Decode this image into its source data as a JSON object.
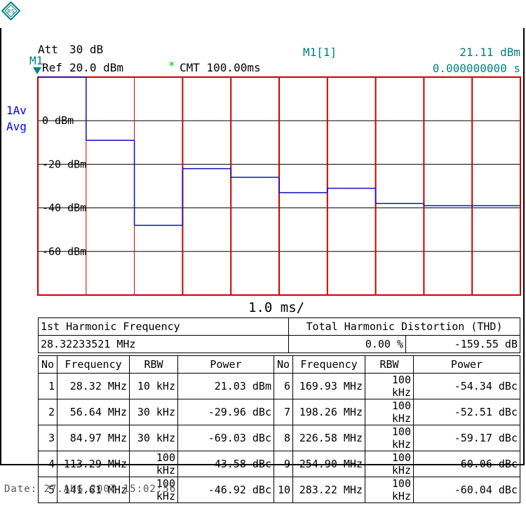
{
  "header": {
    "att_label": "Att",
    "att_value": "30 dB",
    "ref_label": "Ref",
    "ref_value": "20.0 dBm",
    "marker_label": "M1",
    "cmt_star": "*",
    "cmt_text": "CMT 100.00ms",
    "marker_readout_label": "M1[1]",
    "marker_level": "21.11 dBm",
    "marker_time": "0.000000000 s",
    "trace_mode_1": "1Av",
    "trace_mode_2": "Avg",
    "x_scale": "1.0 ms/"
  },
  "colors": {
    "teal": "#008080",
    "trace": "#1010c0",
    "divider_red": "#cc0000",
    "grid": "#000000"
  },
  "chart_data": {
    "type": "line",
    "ylabel_ticks": [
      "0 dBm",
      "-20 dBm",
      "-40 dBm",
      "-60 dBm"
    ],
    "ylim": [
      -80,
      20
    ],
    "xlim": [
      0,
      10
    ],
    "x_unit_label": "1.0 ms/",
    "series": [
      {
        "segments": [
          {
            "x": [
              0,
              1
            ],
            "y": 20
          },
          {
            "x": [
              1,
              2
            ],
            "y": -9
          },
          {
            "x": [
              2,
              3
            ],
            "y": -48
          },
          {
            "x": [
              3,
              4
            ],
            "y": -22
          },
          {
            "x": [
              4,
              5
            ],
            "y": -26
          },
          {
            "x": [
              5,
              6
            ],
            "y": -33
          },
          {
            "x": [
              6,
              7
            ],
            "y": -31
          },
          {
            "x": [
              7,
              8
            ],
            "y": -38
          },
          {
            "x": [
              8,
              10
            ],
            "y": -39
          }
        ]
      }
    ]
  },
  "summary": {
    "first_harmonic_label": "1st Harmonic Frequency",
    "first_harmonic_value": "28.32233521 MHz",
    "thd_label": "Total Harmonic Distortion (THD)",
    "thd_percent": "0.00 %",
    "thd_db": "-159.55 dB"
  },
  "table": {
    "headers": [
      "No",
      "Frequency",
      "RBW",
      "Power",
      "No",
      "Frequency",
      "RBW",
      "Power"
    ],
    "rows": [
      [
        "1",
        "28.32 MHz",
        "10 kHz",
        "21.03 dBm",
        "6",
        "169.93 MHz",
        "100 kHz",
        "-54.34 dBc"
      ],
      [
        "2",
        "56.64 MHz",
        "30 kHz",
        "-29.96 dBc",
        "7",
        "198.26 MHz",
        "100 kHz",
        "-52.51 dBc"
      ],
      [
        "3",
        "84.97 MHz",
        "30 kHz",
        "-69.03 dBc",
        "8",
        "226.58 MHz",
        "100 kHz",
        "-59.17 dBc"
      ],
      [
        "4",
        "113.29 MHz",
        "100 kHz",
        "-43.58 dBc",
        "9",
        "254.90 MHz",
        "100 kHz",
        "-60.06 dBc"
      ],
      [
        "5",
        "141.61 MHz",
        "100 kHz",
        "-46.92 dBc",
        "10",
        "283.22 MHz",
        "100 kHz",
        "-60.04 dBc"
      ]
    ]
  },
  "footer": {
    "date": "Date: 27.AUG.2007  15:02:56"
  }
}
